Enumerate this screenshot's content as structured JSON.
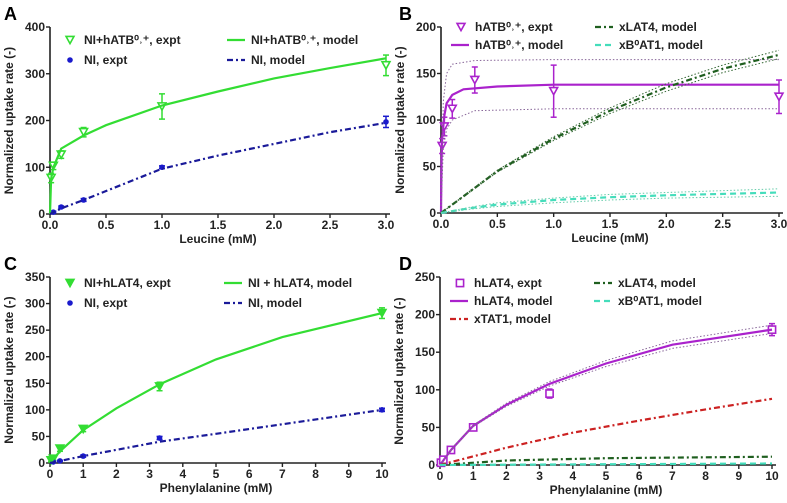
{
  "chart_data": [
    {
      "type": "scatter+line",
      "panel_label": "A",
      "xlabel": "Leucine (mM)",
      "ylabel": "Normalized uptake rate (-)",
      "xlim": [
        0,
        3
      ],
      "ylim": [
        0,
        400
      ],
      "xticks": [
        0,
        0.5,
        1,
        1.5,
        2,
        2.5,
        3
      ],
      "xtick_decimals": 1,
      "yticks": [
        0,
        100,
        200,
        300,
        400
      ],
      "series": [
        {
          "name": "NI+hATB⁰˒⁺, expt",
          "kind": "points",
          "marker": "tri-open",
          "color": "#33dd33",
          "x": [
            0.01,
            0.03,
            0.1,
            0.3,
            1,
            3
          ],
          "y": [
            77,
            103,
            127,
            175,
            230,
            318
          ],
          "err": [
            10,
            8,
            8,
            10,
            27,
            22
          ]
        },
        {
          "name": "NI, expt",
          "kind": "points",
          "marker": "circle",
          "color": "#1a1acc",
          "x": [
            0.03,
            0.1,
            0.3,
            1,
            3
          ],
          "y": [
            4,
            15,
            30,
            100,
            197
          ],
          "err": [
            2,
            2,
            3,
            3,
            12
          ]
        },
        {
          "name": "NI+hATB⁰˒⁺, model",
          "kind": "line",
          "dash": "solid",
          "color": "#33dd33",
          "x": [
            0,
            0.01,
            0.03,
            0.1,
            0.3,
            0.5,
            1,
            1.5,
            2,
            2.5,
            3
          ],
          "y": [
            0,
            75,
            100,
            140,
            168,
            190,
            232,
            262,
            290,
            312,
            333
          ]
        },
        {
          "name": "NI, model",
          "kind": "line",
          "dash": "dashdot",
          "color": "#1a1a99",
          "x": [
            0,
            0.1,
            0.3,
            1,
            1.5,
            2,
            2.5,
            3
          ],
          "y": [
            0,
            12,
            30,
            97,
            125,
            150,
            175,
            195
          ]
        }
      ]
    },
    {
      "type": "scatter+line",
      "panel_label": "B",
      "xlabel": "Leucine (mM)",
      "ylabel": "Normalized uptake rate (-)",
      "xlim": [
        0,
        3
      ],
      "ylim": [
        0,
        200
      ],
      "xticks": [
        0,
        0.5,
        1,
        1.5,
        2,
        2.5,
        3
      ],
      "xtick_decimals": 1,
      "yticks": [
        0,
        50,
        100,
        150,
        200
      ],
      "series": [
        {
          "name": "hATB⁰˒⁺, expt",
          "kind": "points",
          "marker": "tri-open",
          "color": "#aa22cc",
          "x": [
            0.01,
            0.03,
            0.1,
            0.3,
            1,
            3
          ],
          "y": [
            72,
            93,
            112,
            143,
            131,
            125
          ],
          "err": [
            8,
            10,
            10,
            14,
            28,
            18
          ]
        },
        {
          "name": "hATB⁰˒⁺, model",
          "kind": "line",
          "dash": "solid",
          "color": "#aa22cc",
          "x": [
            0,
            0.005,
            0.01,
            0.03,
            0.05,
            0.1,
            0.2,
            0.5,
            1,
            3
          ],
          "y": [
            0,
            60,
            80,
            105,
            118,
            127,
            133,
            136,
            138,
            138
          ]
        },
        {
          "name": "hATB⁰˒⁺, model upper bound",
          "kind": "band",
          "color": "#886699",
          "x": [
            0,
            0.02,
            0.05,
            0.1,
            0.3,
            1,
            3
          ],
          "y": [
            0,
            120,
            150,
            160,
            164,
            165,
            165
          ]
        },
        {
          "name": "hATB⁰˒⁺, model lower bound",
          "kind": "band",
          "color": "#886699",
          "x": [
            0,
            0.02,
            0.05,
            0.1,
            0.3,
            1,
            3
          ],
          "y": [
            0,
            70,
            90,
            100,
            110,
            112,
            112
          ]
        },
        {
          "name": "xLAT4, model",
          "kind": "line",
          "dash": "dashdot",
          "color": "#1f5f1f",
          "x": [
            0,
            0.5,
            1,
            1.5,
            2,
            2.5,
            3
          ],
          "y": [
            0,
            45,
            80,
            110,
            135,
            155,
            170
          ]
        },
        {
          "name": "xLAT4, model upper bound",
          "kind": "band",
          "color": "#336633",
          "x": [
            0,
            0.5,
            1,
            1.5,
            2,
            2.5,
            3
          ],
          "y": [
            0,
            46,
            82,
            113,
            139,
            159,
            175
          ]
        },
        {
          "name": "xLAT4, model lower bound",
          "kind": "band",
          "color": "#336633",
          "x": [
            0,
            0.5,
            1,
            1.5,
            2,
            2.5,
            3
          ],
          "y": [
            0,
            44,
            78,
            107,
            131,
            151,
            166
          ]
        },
        {
          "name": "xB⁰AT1, model",
          "kind": "line",
          "dash": "dash",
          "color": "#44ddbb",
          "x": [
            0,
            0.25,
            0.5,
            1,
            1.5,
            2,
            3
          ],
          "y": [
            0,
            5,
            9,
            14,
            17,
            19,
            22
          ]
        },
        {
          "name": "xB⁰AT1, model upper bound",
          "kind": "band",
          "color": "#66ccaa",
          "x": [
            0,
            0.25,
            0.5,
            1,
            1.5,
            2,
            3
          ],
          "y": [
            0,
            6,
            11,
            16,
            20,
            22,
            26
          ]
        },
        {
          "name": "xB⁰AT1, model lower bound",
          "kind": "band",
          "color": "#66ccaa",
          "x": [
            0,
            0.25,
            0.5,
            1,
            1.5,
            2,
            3
          ],
          "y": [
            0,
            4,
            7,
            11,
            14,
            16,
            18
          ]
        }
      ],
      "legend_order": [
        0,
        1,
        4,
        7
      ]
    },
    {
      "type": "scatter+line",
      "panel_label": "C",
      "xlabel": "Phenylalanine (mM)",
      "ylabel": "Normalized uptake rate (-)",
      "xlim": [
        0,
        10
      ],
      "ylim": [
        0,
        350
      ],
      "xticks": [
        0,
        1,
        2,
        3,
        4,
        5,
        6,
        7,
        8,
        9,
        10
      ],
      "xtick_decimals": 0,
      "yticks": [
        0,
        50,
        100,
        150,
        200,
        250,
        300,
        350
      ],
      "series": [
        {
          "name": "NI+hLAT4, expt",
          "kind": "points",
          "marker": "tri-filled",
          "color": "#33dd33",
          "x": [
            0.03,
            0.1,
            0.3,
            1,
            3.3,
            10
          ],
          "y": [
            5,
            8,
            27,
            64,
            144,
            282
          ],
          "err": [
            3,
            3,
            5,
            5,
            8,
            10
          ]
        },
        {
          "name": "NI, expt",
          "kind": "points",
          "marker": "circle",
          "color": "#1a1acc",
          "x": [
            0.1,
            0.3,
            1,
            3.3,
            10
          ],
          "y": [
            2,
            4,
            13,
            47,
            100
          ],
          "err": [
            1,
            1,
            2,
            3,
            3
          ]
        },
        {
          "name": "NI + hLAT4, model",
          "kind": "line",
          "dash": "solid",
          "color": "#33dd33",
          "x": [
            0,
            0.3,
            1,
            2,
            3.3,
            5,
            7,
            10
          ],
          "y": [
            0,
            22,
            62,
            103,
            148,
            195,
            237,
            282
          ]
        },
        {
          "name": "NI, model",
          "kind": "line",
          "dash": "dashdot",
          "color": "#1a1a99",
          "x": [
            0,
            1,
            3.3,
            5,
            10
          ],
          "y": [
            0,
            13,
            40,
            55,
            100
          ]
        }
      ]
    },
    {
      "type": "scatter+line",
      "panel_label": "D",
      "xlabel": "Phenylalanine (mM)",
      "ylabel": "Normalized uptake rate (-)",
      "xlim": [
        0,
        10
      ],
      "ylim": [
        0,
        250
      ],
      "xticks": [
        0,
        1,
        2,
        3,
        4,
        5,
        6,
        7,
        8,
        9,
        10
      ],
      "xtick_decimals": 0,
      "yticks": [
        0,
        50,
        100,
        150,
        200,
        250
      ],
      "series": [
        {
          "name": "hLAT4, expt",
          "kind": "points",
          "marker": "square-open",
          "color": "#aa22cc",
          "x": [
            0.03,
            0.1,
            0.33,
            1,
            3.3,
            10
          ],
          "y": [
            3,
            7,
            20,
            50,
            95,
            180
          ],
          "err": [
            2,
            2,
            2,
            3,
            6,
            8
          ]
        },
        {
          "name": "hLAT4, model",
          "kind": "line",
          "dash": "solid",
          "color": "#aa22cc",
          "x": [
            0,
            0.33,
            1,
            2,
            3.3,
            5,
            7,
            10
          ],
          "y": [
            0,
            20,
            52,
            80,
            108,
            135,
            160,
            180
          ]
        },
        {
          "name": "hLAT4, model upper bound",
          "kind": "band",
          "color": "#886699",
          "x": [
            0,
            0.33,
            1,
            2,
            3.3,
            5,
            7,
            10
          ],
          "y": [
            0,
            21,
            53,
            82,
            111,
            139,
            165,
            186
          ]
        },
        {
          "name": "hLAT4, model lower bound",
          "kind": "band",
          "color": "#886699",
          "x": [
            0,
            0.33,
            1,
            2,
            3.3,
            5,
            7,
            10
          ],
          "y": [
            0,
            19,
            51,
            78,
            105,
            131,
            155,
            175
          ]
        },
        {
          "name": "xTAT1, model",
          "kind": "line",
          "dash": "dashdot",
          "color": "#cc2222",
          "x": [
            0,
            2,
            4,
            6,
            8,
            10
          ],
          "y": [
            0,
            23,
            43,
            59,
            74,
            88
          ]
        },
        {
          "name": "xLAT4, model",
          "kind": "line",
          "dash": "dashdot",
          "color": "#1f5f1f",
          "x": [
            0,
            2,
            5,
            10
          ],
          "y": [
            0,
            6,
            9,
            11
          ]
        },
        {
          "name": "xB⁰AT1, model",
          "kind": "line",
          "dash": "dash",
          "color": "#44ddbb",
          "x": [
            0,
            10
          ],
          "y": [
            0,
            2
          ]
        }
      ],
      "legend_order": [
        0,
        1,
        4,
        5,
        6
      ]
    }
  ]
}
